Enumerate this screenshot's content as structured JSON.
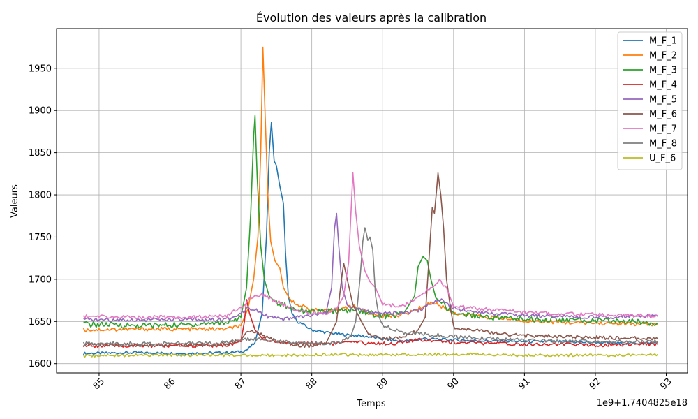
{
  "chart_data": {
    "type": "line",
    "title": "Évolution des valeurs après la calibration",
    "xlabel": "Temps",
    "ylabel": "Valeurs",
    "offset_text": "1e9+1.7404825e18",
    "xlim": [
      84.4,
      93.3
    ],
    "ylim": [
      1589,
      1997
    ],
    "x_ticks": [
      85,
      86,
      87,
      88,
      89,
      90,
      91,
      92,
      93
    ],
    "x_tick_labels": [
      "85",
      "86",
      "87",
      "88",
      "89",
      "90",
      "91",
      "92",
      "93"
    ],
    "y_ticks": [
      1600,
      1650,
      1700,
      1750,
      1800,
      1850,
      1900,
      1950
    ],
    "y_tick_labels": [
      "1600",
      "1650",
      "1700",
      "1750",
      "1800",
      "1850",
      "1900",
      "1950"
    ],
    "grid": true,
    "legend_position": "upper right",
    "series": [
      {
        "name": "M_F_1",
        "color": "#1f77b4",
        "points": [
          [
            84.78,
            1612
          ],
          [
            85.5,
            1613
          ],
          [
            86.2,
            1612
          ],
          [
            86.8,
            1613
          ],
          [
            87.0,
            1614
          ],
          [
            87.1,
            1617
          ],
          [
            87.2,
            1625
          ],
          [
            87.3,
            1660
          ],
          [
            87.36,
            1750
          ],
          [
            87.4,
            1850
          ],
          [
            87.43,
            1886
          ],
          [
            87.47,
            1840
          ],
          [
            87.5,
            1835
          ],
          [
            87.55,
            1810
          ],
          [
            87.6,
            1790
          ],
          [
            87.63,
            1730
          ],
          [
            87.67,
            1680
          ],
          [
            87.72,
            1660
          ],
          [
            87.8,
            1650
          ],
          [
            88.0,
            1640
          ],
          [
            88.2,
            1637
          ],
          [
            88.5,
            1634
          ],
          [
            88.8,
            1632
          ],
          [
            89.0,
            1629
          ],
          [
            89.2,
            1627
          ],
          [
            89.4,
            1627
          ],
          [
            89.6,
            1630
          ],
          [
            89.75,
            1629
          ],
          [
            90.0,
            1628
          ],
          [
            90.5,
            1627
          ],
          [
            91.0,
            1626
          ],
          [
            91.5,
            1626
          ],
          [
            92.0,
            1625
          ],
          [
            92.5,
            1624
          ],
          [
            92.88,
            1625
          ]
        ]
      },
      {
        "name": "M_F_2",
        "color": "#ff7f0e",
        "points": [
          [
            84.78,
            1640
          ],
          [
            85.5,
            1641
          ],
          [
            86.2,
            1641
          ],
          [
            86.8,
            1641
          ],
          [
            87.0,
            1645
          ],
          [
            87.1,
            1665
          ],
          [
            87.18,
            1700
          ],
          [
            87.24,
            1750
          ],
          [
            87.28,
            1850
          ],
          [
            87.31,
            1975
          ],
          [
            87.34,
            1900
          ],
          [
            87.38,
            1800
          ],
          [
            87.42,
            1745
          ],
          [
            87.48,
            1722
          ],
          [
            87.55,
            1713
          ],
          [
            87.6,
            1690
          ],
          [
            87.7,
            1675
          ],
          [
            87.8,
            1670
          ],
          [
            88.0,
            1664
          ],
          [
            88.2,
            1662
          ],
          [
            88.4,
            1665
          ],
          [
            88.6,
            1668
          ],
          [
            88.8,
            1660
          ],
          [
            89.0,
            1656
          ],
          [
            89.3,
            1658
          ],
          [
            89.5,
            1665
          ],
          [
            89.7,
            1673
          ],
          [
            89.85,
            1667
          ],
          [
            90.0,
            1660
          ],
          [
            90.5,
            1655
          ],
          [
            91.0,
            1651
          ],
          [
            91.5,
            1649
          ],
          [
            92.0,
            1648
          ],
          [
            92.5,
            1647
          ],
          [
            92.88,
            1646
          ]
        ]
      },
      {
        "name": "M_F_3",
        "color": "#2ca02c",
        "points": [
          [
            84.78,
            1647
          ],
          [
            85.5,
            1645
          ],
          [
            86.2,
            1646
          ],
          [
            86.8,
            1649
          ],
          [
            87.0,
            1655
          ],
          [
            87.08,
            1690
          ],
          [
            87.14,
            1780
          ],
          [
            87.18,
            1870
          ],
          [
            87.2,
            1894
          ],
          [
            87.23,
            1820
          ],
          [
            87.28,
            1740
          ],
          [
            87.33,
            1700
          ],
          [
            87.4,
            1680
          ],
          [
            87.5,
            1672
          ],
          [
            87.6,
            1670
          ],
          [
            87.7,
            1666
          ],
          [
            87.9,
            1663
          ],
          [
            88.1,
            1661
          ],
          [
            88.3,
            1662
          ],
          [
            88.5,
            1663
          ],
          [
            88.7,
            1663
          ],
          [
            88.9,
            1658
          ],
          [
            89.1,
            1656
          ],
          [
            89.3,
            1660
          ],
          [
            89.45,
            1680
          ],
          [
            89.5,
            1715
          ],
          [
            89.57,
            1727
          ],
          [
            89.63,
            1722
          ],
          [
            89.68,
            1700
          ],
          [
            89.75,
            1678
          ],
          [
            89.85,
            1670
          ],
          [
            90.0,
            1660
          ],
          [
            90.5,
            1655
          ],
          [
            91.0,
            1653
          ],
          [
            91.5,
            1652
          ],
          [
            92.0,
            1651
          ],
          [
            92.5,
            1650
          ],
          [
            92.88,
            1648
          ]
        ]
      },
      {
        "name": "M_F_4",
        "color": "#d62728",
        "points": [
          [
            84.78,
            1621
          ],
          [
            85.5,
            1621
          ],
          [
            86.2,
            1621
          ],
          [
            86.8,
            1622
          ],
          [
            87.0,
            1626
          ],
          [
            87.05,
            1650
          ],
          [
            87.08,
            1676
          ],
          [
            87.12,
            1660
          ],
          [
            87.2,
            1640
          ],
          [
            87.3,
            1630
          ],
          [
            87.5,
            1626
          ],
          [
            87.7,
            1624
          ],
          [
            88.0,
            1624
          ],
          [
            88.3,
            1624
          ],
          [
            88.6,
            1625
          ],
          [
            88.9,
            1624
          ],
          [
            89.2,
            1624
          ],
          [
            89.5,
            1628
          ],
          [
            89.75,
            1628
          ],
          [
            90.0,
            1625
          ],
          [
            90.5,
            1624
          ],
          [
            91.0,
            1623
          ],
          [
            91.5,
            1623
          ],
          [
            92.0,
            1622
          ],
          [
            92.5,
            1623
          ],
          [
            92.88,
            1623
          ]
        ]
      },
      {
        "name": "M_F_5",
        "color": "#9467bd",
        "points": [
          [
            84.78,
            1652
          ],
          [
            85.5,
            1652
          ],
          [
            86.2,
            1652
          ],
          [
            86.8,
            1652
          ],
          [
            87.0,
            1660
          ],
          [
            87.1,
            1666
          ],
          [
            87.2,
            1665
          ],
          [
            87.3,
            1660
          ],
          [
            87.4,
            1655
          ],
          [
            87.6,
            1652
          ],
          [
            87.8,
            1655
          ],
          [
            88.0,
            1657
          ],
          [
            88.2,
            1660
          ],
          [
            88.28,
            1690
          ],
          [
            88.32,
            1760
          ],
          [
            88.35,
            1778
          ],
          [
            88.38,
            1740
          ],
          [
            88.43,
            1690
          ],
          [
            88.5,
            1670
          ],
          [
            88.6,
            1665
          ],
          [
            88.8,
            1662
          ],
          [
            89.0,
            1660
          ],
          [
            89.3,
            1660
          ],
          [
            89.5,
            1663
          ],
          [
            89.7,
            1672
          ],
          [
            89.85,
            1675
          ],
          [
            90.0,
            1665
          ],
          [
            90.5,
            1660
          ],
          [
            91.0,
            1657
          ],
          [
            91.5,
            1656
          ],
          [
            92.0,
            1655
          ],
          [
            92.5,
            1656
          ],
          [
            92.88,
            1656
          ]
        ]
      },
      {
        "name": "M_F_6",
        "color": "#8c564b",
        "points": [
          [
            84.78,
            1623
          ],
          [
            85.5,
            1622
          ],
          [
            86.2,
            1622
          ],
          [
            86.8,
            1623
          ],
          [
            87.0,
            1628
          ],
          [
            87.1,
            1640
          ],
          [
            87.2,
            1637
          ],
          [
            87.35,
            1632
          ],
          [
            87.5,
            1627
          ],
          [
            87.8,
            1622
          ],
          [
            88.0,
            1621
          ],
          [
            88.2,
            1624
          ],
          [
            88.35,
            1650
          ],
          [
            88.42,
            1700
          ],
          [
            88.45,
            1719
          ],
          [
            88.5,
            1700
          ],
          [
            88.58,
            1670
          ],
          [
            88.7,
            1650
          ],
          [
            88.8,
            1635
          ],
          [
            89.0,
            1630
          ],
          [
            89.3,
            1630
          ],
          [
            89.5,
            1640
          ],
          [
            89.6,
            1655
          ],
          [
            89.65,
            1720
          ],
          [
            89.7,
            1785
          ],
          [
            89.73,
            1778
          ],
          [
            89.76,
            1805
          ],
          [
            89.78,
            1826
          ],
          [
            89.82,
            1800
          ],
          [
            89.86,
            1760
          ],
          [
            89.9,
            1700
          ],
          [
            89.95,
            1670
          ],
          [
            90.0,
            1643
          ],
          [
            90.3,
            1640
          ],
          [
            90.5,
            1637
          ],
          [
            91.0,
            1633
          ],
          [
            91.5,
            1632
          ],
          [
            92.0,
            1631
          ],
          [
            92.5,
            1630
          ],
          [
            92.88,
            1630
          ]
        ]
      },
      {
        "name": "M_F_7",
        "color": "#e377c2",
        "points": [
          [
            84.78,
            1656
          ],
          [
            85.5,
            1655
          ],
          [
            86.2,
            1655
          ],
          [
            86.8,
            1656
          ],
          [
            87.0,
            1667
          ],
          [
            87.15,
            1678
          ],
          [
            87.3,
            1682
          ],
          [
            87.45,
            1676
          ],
          [
            87.6,
            1670
          ],
          [
            87.8,
            1662
          ],
          [
            88.0,
            1660
          ],
          [
            88.2,
            1660
          ],
          [
            88.35,
            1665
          ],
          [
            88.45,
            1680
          ],
          [
            88.52,
            1720
          ],
          [
            88.56,
            1790
          ],
          [
            88.58,
            1826
          ],
          [
            88.62,
            1780
          ],
          [
            88.67,
            1740
          ],
          [
            88.75,
            1710
          ],
          [
            88.82,
            1697
          ],
          [
            88.9,
            1690
          ],
          [
            89.0,
            1670
          ],
          [
            89.3,
            1668
          ],
          [
            89.5,
            1680
          ],
          [
            89.7,
            1690
          ],
          [
            89.8,
            1698
          ],
          [
            89.9,
            1690
          ],
          [
            90.0,
            1668
          ],
          [
            90.5,
            1664
          ],
          [
            91.0,
            1661
          ],
          [
            91.5,
            1659
          ],
          [
            92.0,
            1658
          ],
          [
            92.5,
            1657
          ],
          [
            92.88,
            1657
          ]
        ]
      },
      {
        "name": "M_F_8",
        "color": "#7f7f7f",
        "points": [
          [
            84.78,
            1624
          ],
          [
            85.5,
            1624
          ],
          [
            86.2,
            1624
          ],
          [
            86.8,
            1625
          ],
          [
            87.0,
            1628
          ],
          [
            87.2,
            1630
          ],
          [
            87.4,
            1628
          ],
          [
            87.6,
            1626
          ],
          [
            87.8,
            1624
          ],
          [
            88.0,
            1624
          ],
          [
            88.2,
            1624
          ],
          [
            88.4,
            1626
          ],
          [
            88.55,
            1632
          ],
          [
            88.62,
            1650
          ],
          [
            88.68,
            1700
          ],
          [
            88.72,
            1745
          ],
          [
            88.75,
            1761
          ],
          [
            88.79,
            1748
          ],
          [
            88.82,
            1750
          ],
          [
            88.86,
            1735
          ],
          [
            88.9,
            1680
          ],
          [
            88.95,
            1655
          ],
          [
            89.0,
            1645
          ],
          [
            89.3,
            1637
          ],
          [
            89.6,
            1635
          ],
          [
            89.9,
            1633
          ],
          [
            90.2,
            1631
          ],
          [
            90.5,
            1630
          ],
          [
            91.0,
            1628
          ],
          [
            91.5,
            1627
          ],
          [
            92.0,
            1626
          ],
          [
            92.5,
            1626
          ],
          [
            92.88,
            1626
          ]
        ]
      },
      {
        "name": "U_F_6",
        "color": "#bcbd22",
        "points": [
          [
            84.78,
            1609
          ],
          [
            85.5,
            1610
          ],
          [
            86.2,
            1610
          ],
          [
            86.8,
            1610
          ],
          [
            87.3,
            1610
          ],
          [
            87.8,
            1610
          ],
          [
            88.3,
            1611
          ],
          [
            88.8,
            1610
          ],
          [
            89.3,
            1611
          ],
          [
            89.8,
            1611
          ],
          [
            90.3,
            1611
          ],
          [
            90.8,
            1610
          ],
          [
            91.3,
            1610
          ],
          [
            91.8,
            1610
          ],
          [
            92.3,
            1610
          ],
          [
            92.88,
            1611
          ]
        ]
      }
    ]
  }
}
